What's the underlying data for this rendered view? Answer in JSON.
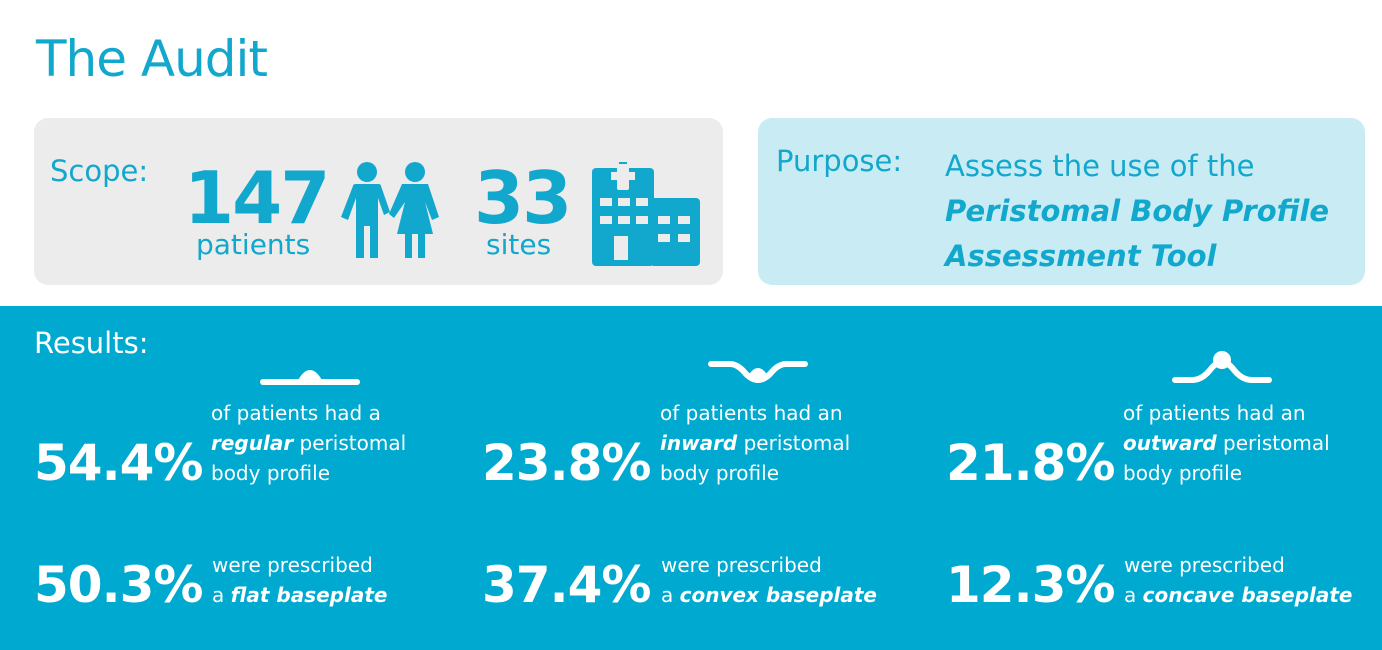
{
  "title": "The Audit",
  "scope": {
    "label": "Scope:",
    "patients_number": "147",
    "patients_label": "patients",
    "sites_number": "33",
    "sites_label": "sites"
  },
  "purpose": {
    "label": "Purpose:",
    "text_line1": "Assess the use of the",
    "text_emphasis_line1": "Peristomal Body Profile",
    "text_emphasis_line2": "Assessment Tool"
  },
  "results": {
    "label": "Results:",
    "columns": [
      {
        "profile_percent": "54.4%",
        "profile_line1": "of patients had a",
        "profile_emphasis": "regular",
        "profile_line2_rest": " peristomal",
        "profile_line3": "body profile",
        "baseplate_percent": "50.3%",
        "baseplate_line1": "were prescribed",
        "baseplate_prefix": "a ",
        "baseplate_emphasis": "flat baseplate",
        "icon": "flat-profile-icon"
      },
      {
        "profile_percent": "23.8%",
        "profile_line1": "of patients had an",
        "profile_emphasis": "inward",
        "profile_line2_rest": " peristomal",
        "profile_line3": "body profile",
        "baseplate_percent": "37.4%",
        "baseplate_line1": "were prescribed",
        "baseplate_prefix": "a ",
        "baseplate_emphasis": "convex baseplate",
        "icon": "inward-profile-icon"
      },
      {
        "profile_percent": "21.8%",
        "profile_line1": "of patients had an",
        "profile_emphasis": "outward",
        "profile_line2_rest": " peristomal",
        "profile_line3": "body profile",
        "baseplate_percent": "12.3%",
        "baseplate_line1": "were prescribed",
        "baseplate_prefix": "a ",
        "baseplate_emphasis": "concave baseplate",
        "icon": "outward-profile-icon"
      }
    ]
  },
  "colors": {
    "accent": "#12a7cc",
    "results_bg": "#00a9cf",
    "scope_bg": "#ececec",
    "purpose_bg": "#c9ecf4"
  }
}
